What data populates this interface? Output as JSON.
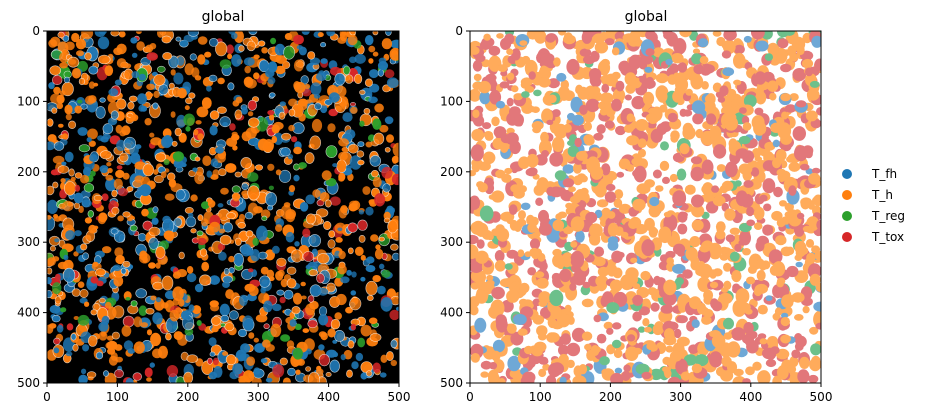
{
  "chart_data": [
    {
      "type": "scatter",
      "title": "global",
      "xlabel": "",
      "ylabel": "",
      "xlim": [
        0,
        500
      ],
      "ylim": [
        500,
        0
      ],
      "xticks": [
        0,
        100,
        200,
        300,
        400,
        500
      ],
      "yticks": [
        0,
        100,
        200,
        300,
        400,
        500
      ],
      "grid": false,
      "background": "#000000",
      "description_type": "image with segmentation overlay",
      "series": [
        {
          "label_ref": "T_fh",
          "color": "#1f77b4"
        },
        {
          "label_ref": "T_h",
          "color": "#ff7f0e"
        },
        {
          "label_ref": "T_reg",
          "color": "#2ca02c"
        },
        {
          "label_ref": "T_tox",
          "color": "#d62728"
        }
      ]
    },
    {
      "type": "scatter",
      "title": "global",
      "xlabel": "",
      "ylabel": "",
      "xlim": [
        0,
        500
      ],
      "ylim": [
        500,
        0
      ],
      "xticks": [
        0,
        100,
        200,
        300,
        400,
        500
      ],
      "yticks": [
        0,
        100,
        200,
        300,
        400,
        500
      ],
      "grid": false,
      "background": "#ffffff",
      "series": [
        {
          "label_ref": "T_fh",
          "color": "#6fa8d6"
        },
        {
          "label_ref": "T_h",
          "color": "#ffab5b"
        },
        {
          "label_ref": "T_reg",
          "color": "#6cc08b"
        },
        {
          "label_ref": "T_tox",
          "color": "#e2777a"
        }
      ]
    }
  ],
  "legend": {
    "placement": "right",
    "entries": [
      {
        "label": "T_fh",
        "color": "#1f77b4"
      },
      {
        "label": "T_h",
        "color": "#ff7f0e"
      },
      {
        "label": "T_reg",
        "color": "#2ca02c"
      },
      {
        "label": "T_tox",
        "color": "#d62728"
      }
    ]
  }
}
